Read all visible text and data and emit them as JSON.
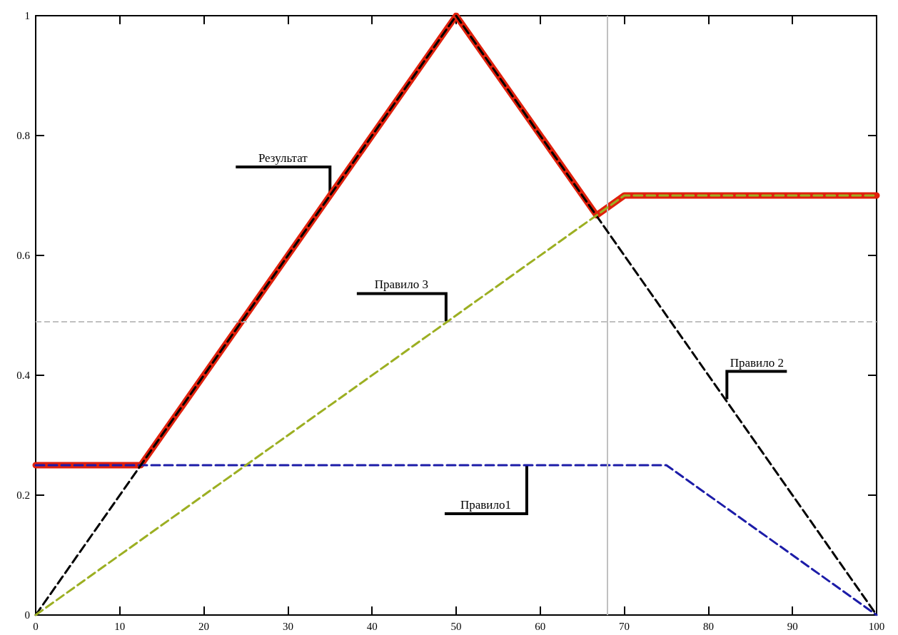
{
  "chart_data": {
    "type": "line",
    "xlim": [
      0,
      100
    ],
    "xticks": [
      0,
      10,
      20,
      30,
      40,
      50,
      60,
      70,
      80,
      90,
      100
    ],
    "ylim": [
      0,
      1
    ],
    "yticks": [
      0,
      0.2,
      0.4,
      0.6,
      0.8,
      1
    ],
    "grid": false,
    "marker": "none",
    "series": [
      {
        "color": "#e0200c",
        "x": [
          0,
          12.5,
          50,
          66.7,
          70,
          100
        ],
        "values": [
          0.25,
          0.25,
          1,
          0.667,
          0.7,
          0.7
        ],
        "line_style": "solid"
      },
      {
        "color": "#1c1ca8",
        "x": [
          0,
          75,
          100
        ],
        "values": [
          0.25,
          0.25,
          0
        ],
        "line_style": "dashed"
      },
      {
        "color": "#000000",
        "x": [
          0,
          50,
          100
        ],
        "values": [
          0,
          1,
          0
        ],
        "line_style": "dashed"
      },
      {
        "color": "#9caf22",
        "x": [
          0,
          70,
          100
        ],
        "values": [
          0,
          0.7,
          0.7
        ],
        "line_style": "dashed"
      }
    ],
    "ref_lines": [
      {
        "axis": "x",
        "value": 68,
        "color": "#c0c0c0",
        "line_style": "solid"
      },
      {
        "axis": "y",
        "value": 0.49,
        "color": "#c0c0c0",
        "line_style": "dashed"
      }
    ],
    "annotations": [
      {
        "text": "Результат",
        "x": 35,
        "y": 0.7
      },
      {
        "text": "Правило 3",
        "x": 48.8,
        "y": 0.49
      },
      {
        "text": "Правило 2",
        "x": 82.2,
        "y": 0.36
      },
      {
        "text": "Правило1",
        "x": 58.4,
        "y": 0.25
      }
    ]
  }
}
